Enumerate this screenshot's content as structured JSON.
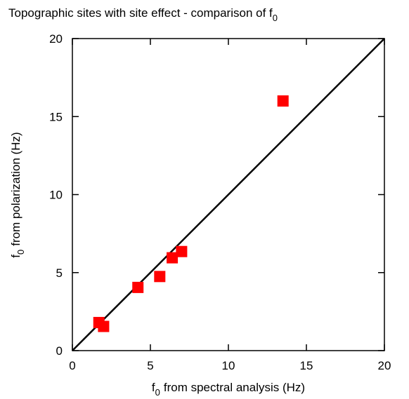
{
  "chart_data": {
    "type": "scatter",
    "title": [
      "Topographic sites with site effect - comparison of f",
      "0"
    ],
    "x_label": [
      "f",
      "0",
      "from spectral analysis (Hz)"
    ],
    "y_label": [
      "f",
      "0",
      "from polarization (Hz)"
    ],
    "x": [
      1.7,
      2.0,
      4.2,
      5.6,
      6.4,
      7.0,
      13.5
    ],
    "series": [
      {
        "color": "#ff0000",
        "values": [
          1.8,
          1.55,
          4.05,
          4.75,
          5.95,
          6.35,
          16.0
        ]
      }
    ],
    "xlim": [
      0,
      20
    ],
    "ylim": [
      0,
      20
    ],
    "xticks": [
      0,
      5,
      10,
      15,
      20
    ],
    "yticks": [
      0,
      5,
      10,
      15,
      20
    ],
    "diagonal": true,
    "grid": false
  }
}
